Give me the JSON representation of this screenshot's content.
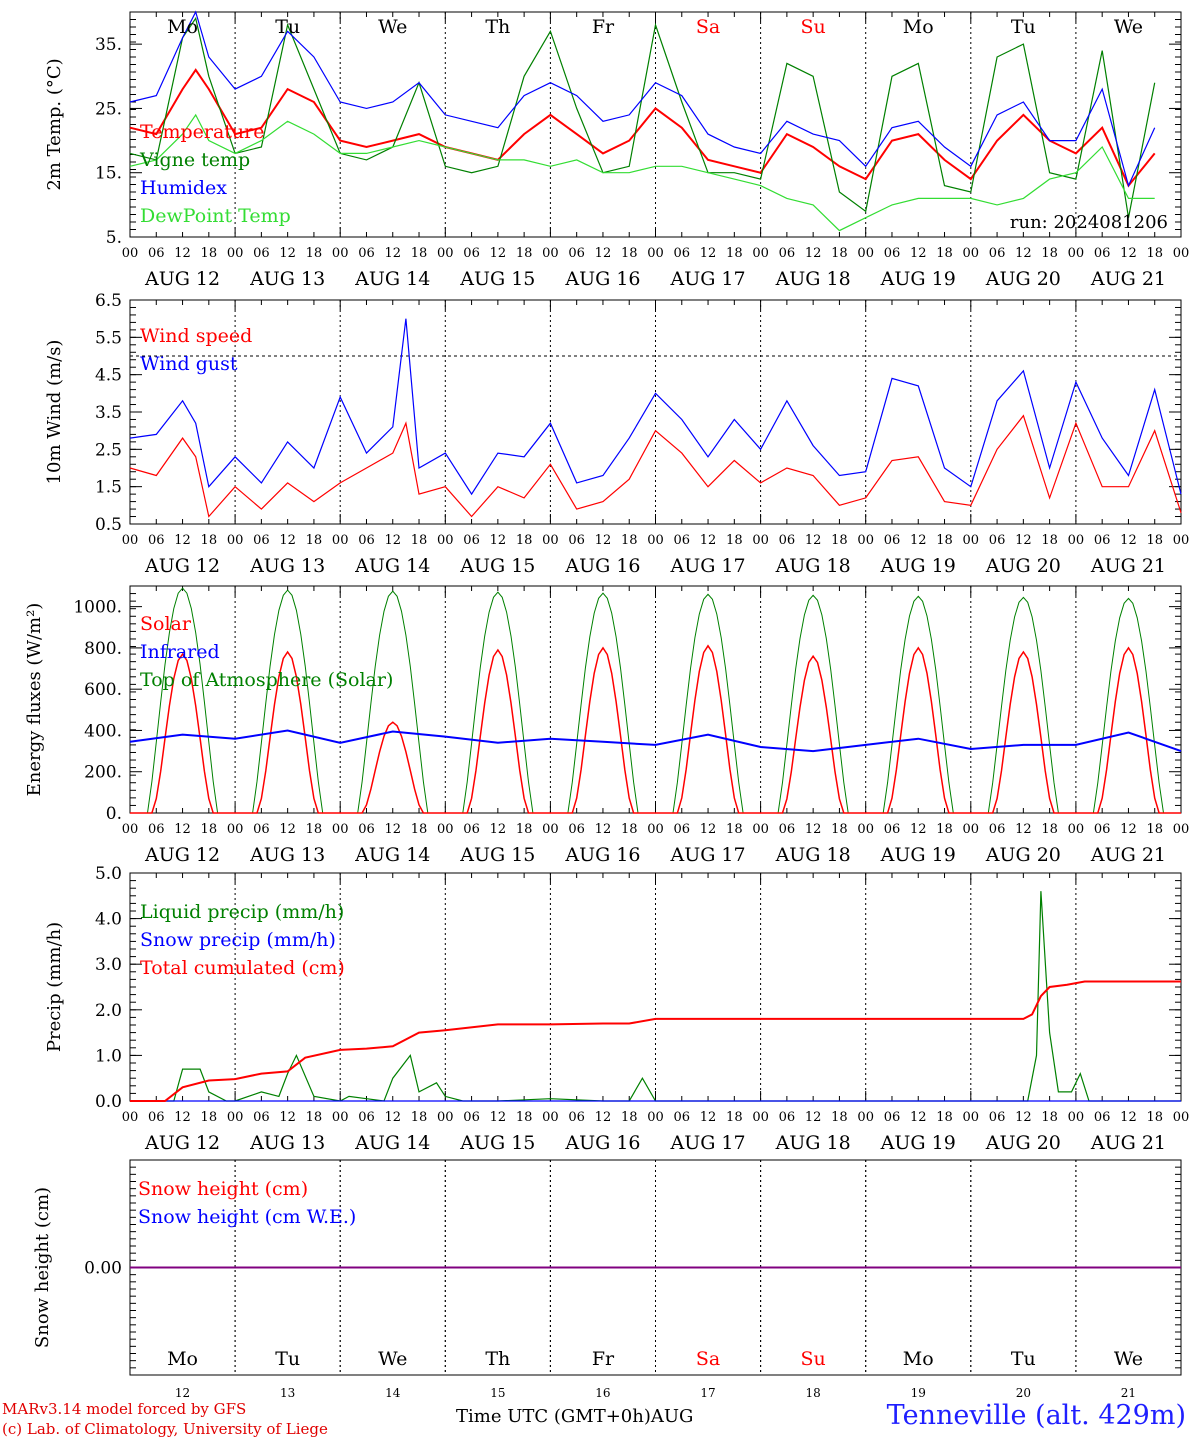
{
  "footer": {
    "credit_line1": "MARv3.14 model forced by GFS",
    "credit_line2": "(c) Lab. of Climatology, University of Liege",
    "station": "Tenneville (alt. 429m)",
    "x_axis_title": "Time UTC (GMT+0h)AUG",
    "run": "run: 2024081206"
  },
  "colors": {
    "red": "#ff0000",
    "blue": "#0000ff",
    "green": "#008000",
    "lightgreen": "#33dd33",
    "purple": "#800080",
    "weekend": "#ff0000"
  },
  "chart_data": [
    {
      "type": "line",
      "ylabel": "2m Temp. (°C)",
      "ylim": [
        5,
        40
      ],
      "yticks": [
        "5.",
        "15.",
        "25.",
        "35."
      ],
      "x_unit": "hours since 2024-08-12 00 UTC",
      "days": [
        "Mo",
        "Tu",
        "We",
        "Th",
        "Fr",
        "Sa",
        "Su",
        "Mo",
        "Tu",
        "We"
      ],
      "dates": [
        "AUG 12",
        "AUG 13",
        "AUG 14",
        "AUG 15",
        "AUG 16",
        "AUG 17",
        "AUG 18",
        "AUG 19",
        "AUG 20",
        "AUG 21"
      ],
      "hour_ticks": [
        "00",
        "06",
        "12",
        "18"
      ],
      "series": [
        {
          "name": "Temperature",
          "color": "red",
          "x": [
            0,
            6,
            12,
            15,
            18,
            24,
            30,
            36,
            42,
            48,
            54,
            60,
            66,
            72,
            78,
            84,
            90,
            96,
            102,
            108,
            114,
            120,
            126,
            132,
            138,
            144,
            150,
            156,
            162,
            168,
            174,
            180,
            186,
            192,
            198,
            204,
            210,
            216,
            222,
            228,
            234
          ],
          "values": [
            22,
            21,
            28,
            31,
            28,
            21,
            22,
            28,
            26,
            20,
            19,
            20,
            21,
            19,
            18,
            17,
            21,
            24,
            21,
            18,
            20,
            25,
            22,
            17,
            16,
            15,
            21,
            19,
            16,
            14,
            20,
            21,
            17,
            14,
            20,
            24,
            20,
            18,
            22,
            13,
            18
          ]
        },
        {
          "name": "Vigne temp",
          "color": "green",
          "x": [
            0,
            6,
            12,
            15,
            18,
            24,
            30,
            36,
            42,
            48,
            54,
            60,
            66,
            72,
            78,
            84,
            90,
            96,
            102,
            108,
            114,
            120,
            126,
            132,
            138,
            144,
            150,
            156,
            162,
            168,
            174,
            180,
            186,
            192,
            198,
            204,
            210,
            216,
            222,
            228,
            234
          ],
          "values": [
            18,
            17,
            36,
            39,
            30,
            18,
            19,
            38,
            28,
            18,
            17,
            19,
            29,
            16,
            15,
            16,
            30,
            37,
            25,
            15,
            16,
            38,
            26,
            15,
            15,
            14,
            32,
            30,
            12,
            9,
            30,
            32,
            13,
            12,
            33,
            35,
            15,
            14,
            34,
            8,
            29
          ]
        },
        {
          "name": "Humidex",
          "color": "blue",
          "x": [
            0,
            6,
            12,
            15,
            18,
            24,
            30,
            36,
            42,
            48,
            54,
            60,
            66,
            72,
            78,
            84,
            90,
            96,
            102,
            108,
            114,
            120,
            126,
            132,
            138,
            144,
            150,
            156,
            162,
            168,
            174,
            180,
            186,
            192,
            198,
            204,
            210,
            216,
            222,
            228,
            234
          ],
          "values": [
            26,
            27,
            36,
            40,
            33,
            28,
            30,
            37,
            33,
            26,
            25,
            26,
            29,
            24,
            23,
            22,
            27,
            29,
            27,
            23,
            24,
            29,
            27,
            21,
            19,
            18,
            23,
            21,
            20,
            16,
            22,
            23,
            19,
            16,
            24,
            26,
            20,
            20,
            28,
            13,
            22
          ]
        },
        {
          "name": "DewPoint Temp",
          "color": "lightgreen",
          "x": [
            0,
            6,
            12,
            15,
            18,
            24,
            30,
            36,
            42,
            48,
            54,
            60,
            66,
            72,
            78,
            84,
            90,
            96,
            102,
            108,
            114,
            120,
            126,
            132,
            138,
            144,
            150,
            156,
            162,
            168,
            174,
            180,
            186,
            192,
            198,
            204,
            210,
            216,
            222,
            228,
            234
          ],
          "values": [
            16,
            17,
            21,
            24,
            20,
            18,
            20,
            23,
            21,
            18,
            18,
            19,
            20,
            19,
            18,
            17,
            17,
            16,
            17,
            15,
            15,
            16,
            16,
            15,
            14,
            13,
            11,
            10,
            6,
            8,
            10,
            11,
            11,
            11,
            10,
            11,
            14,
            15,
            19,
            11,
            11
          ]
        }
      ],
      "guide_lines": []
    },
    {
      "type": "line",
      "ylabel": "10m Wind (m/s)",
      "ylim": [
        0.5,
        6.5
      ],
      "yticks": [
        "0.5",
        "1.5",
        "2.5",
        "3.5",
        "4.5",
        "5.5",
        "6.5"
      ],
      "x_unit": "hours since 2024-08-12 00 UTC",
      "dates": [
        "AUG 12",
        "AUG 13",
        "AUG 14",
        "AUG 15",
        "AUG 16",
        "AUG 17",
        "AUG 18",
        "AUG 19",
        "AUG 20",
        "AUG 21"
      ],
      "hour_ticks": [
        "00",
        "06",
        "12",
        "18"
      ],
      "series": [
        {
          "name": "Wind speed",
          "color": "red",
          "x": [
            0,
            6,
            12,
            15,
            18,
            24,
            30,
            36,
            42,
            48,
            54,
            60,
            63,
            66,
            72,
            78,
            84,
            90,
            96,
            102,
            108,
            114,
            120,
            126,
            132,
            138,
            144,
            150,
            156,
            162,
            168,
            174,
            180,
            186,
            192,
            198,
            204,
            210,
            216,
            222,
            228,
            234,
            240
          ],
          "values": [
            2,
            1.8,
            2.8,
            2.3,
            0.7,
            1.5,
            0.9,
            1.6,
            1.1,
            1.6,
            2,
            2.4,
            3.2,
            1.3,
            1.5,
            0.7,
            1.5,
            1.2,
            2.1,
            0.9,
            1.1,
            1.7,
            3,
            2.4,
            1.5,
            2.2,
            1.6,
            2,
            1.8,
            1,
            1.2,
            2.2,
            2.3,
            1.1,
            1,
            2.5,
            3.4,
            1.2,
            3.2,
            1.5,
            1.5,
            3,
            0.8
          ]
        },
        {
          "name": "Wind gust",
          "color": "blue",
          "x": [
            0,
            6,
            12,
            15,
            18,
            24,
            30,
            36,
            42,
            48,
            54,
            60,
            63,
            66,
            72,
            78,
            84,
            90,
            96,
            102,
            108,
            114,
            120,
            126,
            132,
            138,
            144,
            150,
            156,
            162,
            168,
            174,
            180,
            186,
            192,
            198,
            204,
            210,
            216,
            222,
            228,
            234,
            240
          ],
          "values": [
            2.8,
            2.9,
            3.8,
            3.2,
            1.5,
            2.3,
            1.6,
            2.7,
            2,
            3.9,
            2.4,
            3.1,
            6,
            2,
            2.4,
            1.3,
            2.4,
            2.3,
            3.2,
            1.6,
            1.8,
            2.8,
            4,
            3.3,
            2.3,
            3.3,
            2.5,
            3.8,
            2.6,
            1.8,
            1.9,
            4.4,
            4.2,
            2,
            1.5,
            3.8,
            4.6,
            2,
            4.3,
            2.8,
            1.8,
            4.1,
            1.3
          ]
        }
      ],
      "guide_lines": [
        5.0
      ]
    },
    {
      "type": "line",
      "ylabel": "Energy fluxes (W/m²)",
      "ylim": [
        0,
        1100
      ],
      "yticks": [
        "0.",
        "200.",
        "400.",
        "600.",
        "800.",
        "1000."
      ],
      "x_unit": "hours since 2024-08-12 00 UTC",
      "dates": [
        "AUG 12",
        "AUG 13",
        "AUG 14",
        "AUG 15",
        "AUG 16",
        "AUG 17",
        "AUG 18",
        "AUG 19",
        "AUG 20",
        "AUG 21"
      ],
      "hour_ticks": [
        "00",
        "06",
        "12",
        "18"
      ],
      "daily_solar_peak": {
        "name": "Solar",
        "color": "red",
        "values": [
          770,
          780,
          440,
          790,
          800,
          810,
          760,
          800,
          780,
          800
        ]
      },
      "toa_peak": {
        "name": "Top of Atmosphere (Solar)",
        "color": "green",
        "values": [
          1090,
          1080,
          1075,
          1070,
          1065,
          1060,
          1055,
          1050,
          1045,
          1040
        ]
      },
      "series": [
        {
          "name": "Infrared",
          "color": "blue",
          "x": [
            0,
            12,
            24,
            36,
            48,
            60,
            72,
            84,
            96,
            108,
            120,
            132,
            144,
            156,
            168,
            180,
            192,
            204,
            216,
            228,
            240
          ],
          "values": [
            345,
            380,
            360,
            400,
            340,
            395,
            370,
            340,
            360,
            345,
            330,
            380,
            320,
            300,
            330,
            360,
            310,
            330,
            330,
            390,
            300
          ]
        }
      ],
      "guide_lines": []
    },
    {
      "type": "line",
      "ylabel": "Precip (mm/h)",
      "ylim": [
        0,
        5
      ],
      "yticks": [
        "0.0",
        "1.0",
        "2.0",
        "3.0",
        "4.0",
        "5.0"
      ],
      "x_unit": "hours since 2024-08-12 00 UTC",
      "dates": [
        "AUG 12",
        "AUG 13",
        "AUG 14",
        "AUG 15",
        "AUG 16",
        "AUG 17",
        "AUG 18",
        "AUG 19",
        "AUG 20",
        "AUG 21"
      ],
      "hour_ticks": [
        "00",
        "06",
        "12",
        "18"
      ],
      "series": [
        {
          "name": "Liquid precip (mm/h)",
          "color": "green",
          "x": [
            0,
            10,
            12,
            16,
            18,
            22,
            24,
            30,
            34,
            36,
            38,
            42,
            48,
            50,
            54,
            58,
            60,
            64,
            66,
            70,
            72,
            76,
            78,
            84,
            96,
            108,
            114,
            117,
            120,
            132,
            195,
            205,
            207,
            208,
            210,
            212,
            215,
            217,
            219,
            220,
            240
          ],
          "values": [
            0,
            0,
            0.7,
            0.7,
            0.2,
            0,
            0,
            0.2,
            0.1,
            0.6,
            1,
            0.1,
            0,
            0.1,
            0.05,
            0,
            0.5,
            1,
            0.2,
            0.4,
            0.1,
            0,
            0,
            0,
            0.05,
            0,
            0,
            0.5,
            0,
            0,
            0,
            0,
            1,
            4.6,
            1.5,
            0.2,
            0.2,
            0.6,
            0,
            0,
            0
          ]
        },
        {
          "name": "Snow precip (mm/h)",
          "color": "blue",
          "x": [
            0,
            240
          ],
          "values": [
            0,
            0
          ]
        },
        {
          "name": "Total cumulated (cm)",
          "color": "red",
          "x": [
            0,
            8,
            12,
            18,
            24,
            30,
            36,
            40,
            48,
            54,
            60,
            66,
            72,
            84,
            96,
            108,
            114,
            120,
            132,
            150,
            168,
            186,
            204,
            206,
            208,
            210,
            214,
            218,
            222,
            240
          ],
          "values": [
            0,
            0,
            0.3,
            0.45,
            0.48,
            0.6,
            0.65,
            0.95,
            1.12,
            1.15,
            1.2,
            1.5,
            1.55,
            1.68,
            1.68,
            1.7,
            1.7,
            1.8,
            1.8,
            1.8,
            1.8,
            1.8,
            1.8,
            1.9,
            2.3,
            2.5,
            2.55,
            2.62,
            2.62,
            2.62
          ]
        }
      ],
      "guide_lines": []
    },
    {
      "type": "line",
      "ylabel": "Snow height (cm)",
      "ylim": [
        -1,
        1
      ],
      "yticks": [
        "0.00"
      ],
      "x_unit": "hours since 2024-08-12 00 UTC",
      "days": [
        "Mo",
        "Tu",
        "We",
        "Th",
        "Fr",
        "Sa",
        "Su",
        "Mo",
        "Tu",
        "We"
      ],
      "day_numbers": [
        "12",
        "13",
        "14",
        "15",
        "16",
        "17",
        "18",
        "19",
        "20",
        "21"
      ],
      "series": [
        {
          "name": "Snow height (cm)",
          "color": "red",
          "x": [
            0,
            240
          ],
          "values": [
            0,
            0
          ]
        },
        {
          "name": "Snow height (cm W.E.)",
          "color": "blue",
          "x": [
            0,
            240
          ],
          "values": [
            0,
            0
          ]
        }
      ],
      "guide_lines": []
    }
  ]
}
